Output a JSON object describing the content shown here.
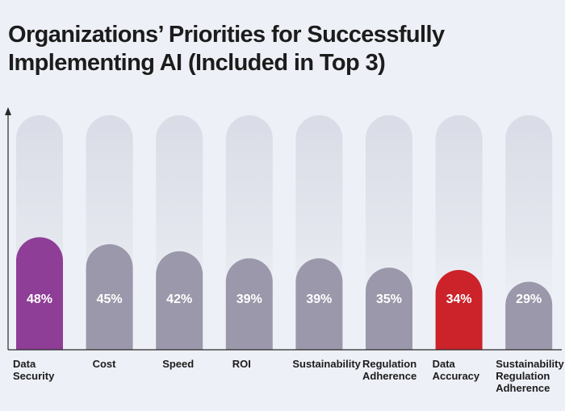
{
  "chart_data": {
    "type": "bar",
    "title": "Organizations’ Priorities for Successfully Implementing AI (Included in Top 3)",
    "categories": [
      "Data Security",
      "Cost",
      "Speed",
      "ROI",
      "Sustainability",
      "Regulation Adherence",
      "Data Accuracy",
      "Sustainability Regulation Adherence"
    ],
    "category_lines": [
      [
        "Data",
        "Security"
      ],
      [
        "Cost"
      ],
      [
        "Speed"
      ],
      [
        "ROI"
      ],
      [
        "Sustainability"
      ],
      [
        "Regulation",
        "Adherence"
      ],
      [
        "Data",
        "Accuracy"
      ],
      [
        "Sustainability",
        "Regulation",
        "Adherence"
      ]
    ],
    "values": [
      48,
      45,
      42,
      39,
      39,
      35,
      34,
      29
    ],
    "value_labels": [
      "48%",
      "45%",
      "42%",
      "39%",
      "39%",
      "35%",
      "34%",
      "29%"
    ],
    "ylim": [
      0,
      100
    ],
    "grid": false,
    "colors": {
      "default": "#9a98aa",
      "highlight_first": "#8e3e96",
      "highlight_accuracy": "#cc2229",
      "track_fade": "#d9dbe6",
      "axis": "#2a2a2a"
    },
    "bar_colors": [
      "#8e3e96",
      "#9a98aa",
      "#9a98aa",
      "#9a98aa",
      "#9a98aa",
      "#9a98aa",
      "#cc2229",
      "#9a98aa"
    ]
  }
}
